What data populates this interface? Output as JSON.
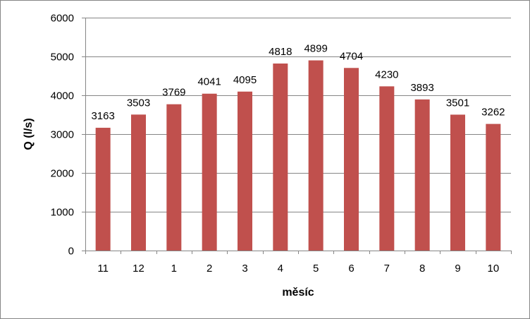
{
  "chart_data": {
    "type": "bar",
    "title": "",
    "xlabel": "měsíc",
    "ylabel": "Q (l/s)",
    "categories": [
      "11",
      "12",
      "1",
      "2",
      "3",
      "4",
      "5",
      "6",
      "7",
      "8",
      "9",
      "10"
    ],
    "values": [
      3163,
      3503,
      3769,
      4041,
      4095,
      4818,
      4899,
      4704,
      4230,
      3893,
      3501,
      3262
    ],
    "data_labels": [
      "3163",
      "3503",
      "3769",
      "4041",
      "4095",
      "4818",
      "4899",
      "4704",
      "4230",
      "3893",
      "3501",
      "3262"
    ],
    "ylim": [
      0,
      6000
    ],
    "yticks": [
      "0",
      "1000",
      "2000",
      "3000",
      "4000",
      "5000",
      "6000"
    ],
    "grid": true,
    "legend": "none",
    "colors": {
      "bar": "#c0504d",
      "grid": "#868686",
      "axis": "#868686"
    }
  }
}
